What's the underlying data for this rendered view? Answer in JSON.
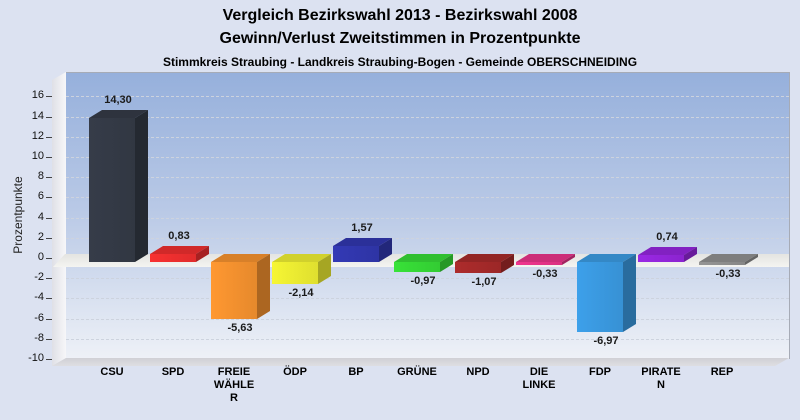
{
  "chart_data": {
    "type": "bar",
    "style": "3d-column",
    "title": "Vergleich Bezirkswahl 2013 - Bezirkswahl 2008",
    "subtitle": "Gewinn/Verlust Zweitstimmen in Prozentpunkte",
    "note": "Stimmkreis Straubing - Landkreis Straubing-Bogen - Gemeinde OBERSCHNEIDING",
    "ylabel": "Prozentpunkte",
    "xlabel": "",
    "ylim": [
      -10,
      16
    ],
    "ytick_step": 2,
    "grid": "dashed-horizontal",
    "legend": "none",
    "categories": [
      "CSU",
      "SPD",
      "FREIE WÄHLER",
      "ÖDP",
      "BP",
      "GRÜNE",
      "NPD",
      "DIE LINKE",
      "FDP",
      "PIRATEN",
      "REP"
    ],
    "values": [
      14.3,
      0.83,
      -5.63,
      -2.14,
      1.57,
      -0.97,
      -1.07,
      -0.33,
      -6.97,
      0.74,
      -0.33
    ],
    "value_labels": [
      "14,30",
      "0,83",
      "-5,63",
      "-2,14",
      "1,57",
      "-0,97",
      "-1,07",
      "-0,33",
      "-6,97",
      "0,74",
      "-0,33"
    ],
    "colors": [
      "#343a46",
      "#ee2f2f",
      "#f5922f",
      "#eded32",
      "#3137ae",
      "#36d936",
      "#a62a2a",
      "#e83389",
      "#3b9ae1",
      "#9426dc",
      "#8f8f8f"
    ],
    "colors_meaning": {
      "accent_page_background": "#dce2f1",
      "plot_gradient_top": "#96b0dc",
      "plot_gradient_bottom": "#eef1f7"
    }
  }
}
